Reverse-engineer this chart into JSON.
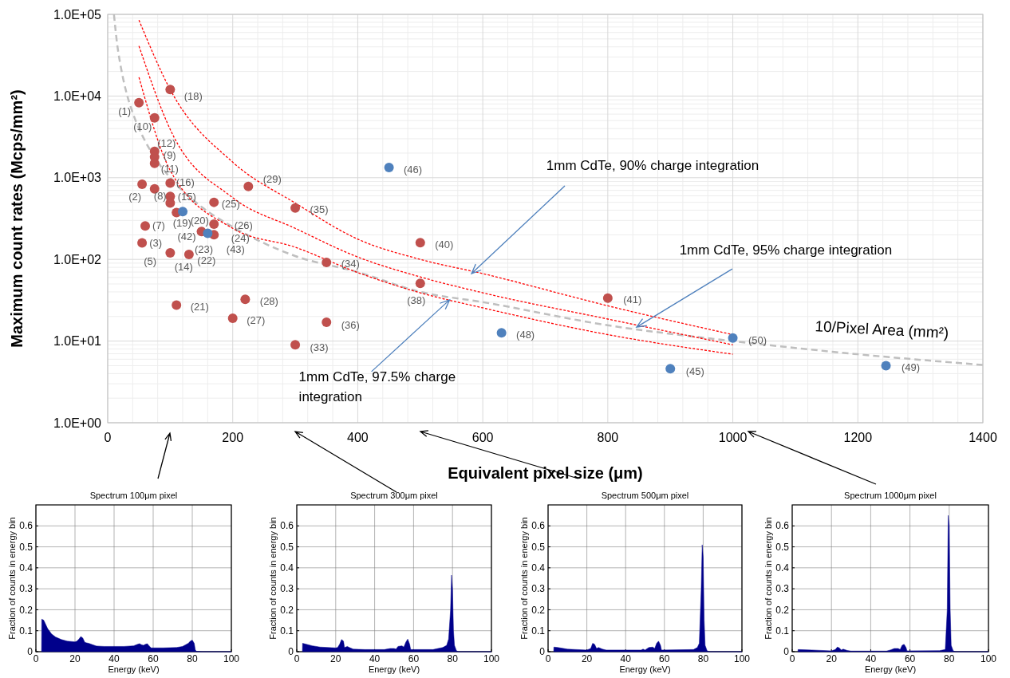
{
  "chart_data": [
    {
      "type": "scatter",
      "xlabel": "Equivalent pixel size (μm)",
      "ylabel": "Maximum count rates (Mcps/mm²)",
      "xlim": [
        0,
        1400
      ],
      "xticks": [
        0,
        200,
        400,
        600,
        800,
        1000,
        1200,
        1400
      ],
      "ylim": [
        1,
        100000
      ],
      "yticks": [
        {
          "value": 1,
          "label": "1.0E+00"
        },
        {
          "value": 10,
          "label": "1.0E+01"
        },
        {
          "value": 100,
          "label": "1.0E+02"
        },
        {
          "value": 1000,
          "label": "1.0E+03"
        },
        {
          "value": 10000,
          "label": "1.0E+04"
        },
        {
          "value": 100000,
          "label": "1.0E+05"
        }
      ],
      "log": "y",
      "grid": true,
      "series": [
        {
          "type": "line",
          "name": "10/Pixel Area (mm²)",
          "color": "#bfbfbf",
          "line_style": "dashed",
          "x": [
            10,
            15,
            20,
            30,
            40,
            50,
            60,
            80,
            100,
            150,
            200,
            300,
            400,
            500,
            600,
            800,
            1000,
            1200,
            1400
          ],
          "values": [
            100000,
            44000,
            25000,
            11000,
            6250,
            4000,
            2800,
            1560,
            1000,
            440,
            250,
            110,
            70,
            40,
            30,
            15.6,
            10,
            6.9,
            5.1
          ]
        },
        {
          "type": "line",
          "color": "#ff0000",
          "line_style": "dotted",
          "x": [
            50,
            100,
            200,
            300,
            400,
            500,
            600,
            800,
            1000
          ],
          "values": [
            85000,
            12000,
            1550,
            490,
            177,
            100,
            67,
            27,
            12
          ]
        },
        {
          "type": "line",
          "color": "#ff0000",
          "line_style": "dotted",
          "x": [
            50,
            100,
            200,
            300,
            400,
            500,
            600,
            800,
            1000
          ],
          "values": [
            41000,
            3900,
            570,
            240,
            107,
            61,
            39,
            18.6,
            9
          ]
        },
        {
          "type": "line",
          "color": "#ff0000",
          "line_style": "dotted",
          "x": [
            50,
            100,
            200,
            300,
            400,
            500,
            600,
            800,
            1000
          ],
          "values": [
            17000,
            1230,
            240,
            141,
            69,
            39,
            25.5,
            12,
            6.9
          ]
        },
        {
          "type": "scatter",
          "color": "#c0504d",
          "marker": "circle",
          "x": [
            50,
            75,
            100,
            75,
            75,
            75,
            55,
            75,
            100,
            100,
            100,
            110,
            170,
            225,
            300,
            60,
            55,
            170,
            170,
            150,
            100,
            130,
            110,
            220,
            200,
            300,
            350,
            350,
            500,
            500,
            800
          ],
          "values": [
            8300,
            5400,
            12000,
            2100,
            1800,
            1500,
            830,
            730,
            860,
            590,
            490,
            375,
            500,
            780,
            425,
            257,
            159,
            270,
            200,
            219,
            120,
            115,
            27.5,
            32.5,
            19,
            9,
            17,
            92,
            160,
            51,
            33.5
          ]
        },
        {
          "type": "scatter",
          "color": "#4f81bd",
          "marker": "circle",
          "x": [
            120,
            160,
            450,
            630,
            900,
            1000,
            1245
          ],
          "values": [
            385,
            209,
            1330,
            12.6,
            4.6,
            10.9,
            5
          ]
        }
      ],
      "annotations": [
        {
          "text": "(1)",
          "x": 50,
          "y": 8300
        },
        {
          "text": "(10)",
          "x": 75,
          "y": 5400
        },
        {
          "text": "(18)",
          "x": 100,
          "y": 12000
        },
        {
          "text": "(12)",
          "x": 75,
          "y": 2100
        },
        {
          "text": "(9)",
          "x": 75,
          "y": 1800
        },
        {
          "text": "(11)",
          "x": 75,
          "y": 1500
        },
        {
          "text": "(2)",
          "x": 55,
          "y": 830
        },
        {
          "text": "(8)",
          "x": 75,
          "y": 730
        },
        {
          "text": "(16)",
          "x": 100,
          "y": 860
        },
        {
          "text": "(15)",
          "x": 100,
          "y": 590
        },
        {
          "text": "(19)",
          "x": 110,
          "y": 375
        },
        {
          "text": "(20)",
          "x": 100,
          "y": 490
        },
        {
          "text": "(42)",
          "x": 120,
          "y": 385
        },
        {
          "text": "(43)",
          "x": 160,
          "y": 209
        },
        {
          "text": "(23)",
          "x": 150,
          "y": 219
        },
        {
          "text": "(25)",
          "x": 170,
          "y": 500
        },
        {
          "text": "(29)",
          "x": 225,
          "y": 780
        },
        {
          "text": "(35)",
          "x": 300,
          "y": 425
        },
        {
          "text": "(7)",
          "x": 60,
          "y": 257
        },
        {
          "text": "(3)",
          "x": 55,
          "y": 159
        },
        {
          "text": "(5)",
          "x": 55,
          "y": 159
        },
        {
          "text": "(26)",
          "x": 170,
          "y": 270
        },
        {
          "text": "(24)",
          "x": 170,
          "y": 200
        },
        {
          "text": "(14)",
          "x": 100,
          "y": 120
        },
        {
          "text": "(22)",
          "x": 130,
          "y": 115
        },
        {
          "text": "(21)",
          "x": 110,
          "y": 27.5
        },
        {
          "text": "(28)",
          "x": 220,
          "y": 32.5
        },
        {
          "text": "(27)",
          "x": 200,
          "y": 19
        },
        {
          "text": "(33)",
          "x": 300,
          "y": 9
        },
        {
          "text": "(36)",
          "x": 350,
          "y": 17
        },
        {
          "text": "(34)",
          "x": 350,
          "y": 92
        },
        {
          "text": "(40)",
          "x": 500,
          "y": 160
        },
        {
          "text": "(38)",
          "x": 500,
          "y": 51
        },
        {
          "text": "(41)",
          "x": 800,
          "y": 33.5
        },
        {
          "text": "(46)",
          "x": 450,
          "y": 1330
        },
        {
          "text": "(48)",
          "x": 630,
          "y": 12.6
        },
        {
          "text": "(45)",
          "x": 900,
          "y": 4.6
        },
        {
          "text": "(50)",
          "x": 1000,
          "y": 10.9
        },
        {
          "text": "(49)",
          "x": 1245,
          "y": 5
        },
        {
          "text": "1mm CdTe, 90% charge integration",
          "x": 582,
          "y": 67
        },
        {
          "text": "1mm CdTe, 95% charge integration",
          "x": 846,
          "y": 14.8
        },
        {
          "text": "1mm CdTe, 97.5% charge integration",
          "x": 547,
          "y": 32
        }
      ]
    },
    {
      "type": "area",
      "title": "Spectrum 100μm pixel",
      "xlabel": "Energy (keV)",
      "ylabel": "Fraction of counts in energy bin",
      "xlim": [
        0,
        100
      ],
      "xticks": [
        0,
        20,
        40,
        60,
        80,
        100
      ],
      "ylim": [
        0,
        0.7
      ],
      "yticks": [
        0,
        0.1,
        0.2,
        0.3,
        0.4,
        0.5,
        0.6
      ],
      "grid": true,
      "series": [
        {
          "color": "#00008b",
          "x": [
            2.9,
            3,
            4,
            6,
            8,
            10,
            13,
            16,
            20,
            21,
            22,
            23,
            24,
            25,
            26,
            27,
            29,
            31,
            35,
            40,
            45,
            50,
            52,
            53,
            54,
            55,
            56,
            57,
            58,
            59,
            65,
            72,
            75,
            78,
            79,
            80,
            81,
            81.5,
            82,
            85,
            100
          ],
          "values": [
            0,
            0.155,
            0.15,
            0.11,
            0.085,
            0.07,
            0.058,
            0.05,
            0.047,
            0.05,
            0.06,
            0.072,
            0.065,
            0.045,
            0.042,
            0.04,
            0.033,
            0.027,
            0.025,
            0.025,
            0.025,
            0.028,
            0.035,
            0.038,
            0.033,
            0.03,
            0.035,
            0.038,
            0.027,
            0.018,
            0.018,
            0.02,
            0.025,
            0.04,
            0.05,
            0.055,
            0.04,
            0.01,
            0.002,
            0,
            0
          ]
        }
      ]
    },
    {
      "type": "area",
      "title": "Spectrum 300μm pixel",
      "xlabel": "Energy (keV)",
      "ylabel": "Fraction of counts in energy bin",
      "xlim": [
        0,
        100
      ],
      "xticks": [
        0,
        20,
        40,
        60,
        80,
        100
      ],
      "ylim": [
        0,
        0.7
      ],
      "yticks": [
        0,
        0.1,
        0.2,
        0.3,
        0.4,
        0.5,
        0.6
      ],
      "grid": true,
      "series": [
        {
          "color": "#00008b",
          "x": [
            2.9,
            3,
            5,
            8,
            12,
            20,
            21,
            22,
            23,
            24,
            24.5,
            26,
            27,
            29,
            35,
            45,
            48,
            50,
            51,
            52,
            54,
            55,
            56,
            57,
            58,
            58.5,
            70,
            75,
            77,
            78,
            79,
            79.5,
            80,
            80.5,
            81,
            82,
            83,
            100
          ],
          "values": [
            0,
            0.04,
            0.035,
            0.028,
            0.022,
            0.018,
            0.02,
            0.035,
            0.058,
            0.05,
            0.02,
            0.025,
            0.02,
            0.012,
            0.01,
            0.01,
            0.015,
            0.015,
            0.012,
            0.025,
            0.028,
            0.022,
            0.045,
            0.06,
            0.035,
            0.01,
            0.01,
            0.02,
            0.03,
            0.06,
            0.2,
            0.365,
            0.3,
            0.1,
            0.03,
            0.005,
            0,
            0
          ]
        }
      ]
    },
    {
      "type": "area",
      "title": "Spectrum 500μm pixel",
      "xlabel": "Energy (keV)",
      "ylabel": "Fraction of counts in energy bin",
      "xlim": [
        0,
        100
      ],
      "xticks": [
        0,
        20,
        40,
        60,
        80,
        100
      ],
      "ylim": [
        0,
        0.7
      ],
      "yticks": [
        0,
        0.1,
        0.2,
        0.3,
        0.4,
        0.5,
        0.6
      ],
      "grid": true,
      "series": [
        {
          "color": "#00008b",
          "x": [
            2.9,
            3,
            5,
            10,
            20,
            22,
            23,
            24,
            25,
            26,
            28,
            30,
            48,
            49,
            50,
            52,
            54,
            55,
            56,
            57,
            58,
            58.5,
            75,
            77,
            78,
            79,
            79.5,
            80,
            80.5,
            81,
            82,
            83,
            100
          ],
          "values": [
            0,
            0.022,
            0.02,
            0.012,
            0.008,
            0.015,
            0.04,
            0.035,
            0.015,
            0.02,
            0.012,
            0.008,
            0.008,
            0.012,
            0.008,
            0.02,
            0.022,
            0.015,
            0.04,
            0.05,
            0.03,
            0.008,
            0.01,
            0.02,
            0.04,
            0.3,
            0.51,
            0.45,
            0.15,
            0.03,
            0.005,
            0,
            0
          ]
        }
      ]
    },
    {
      "type": "area",
      "title": "Spectrum 1000μm pixel",
      "xlabel": "Energy (keV)",
      "ylabel": "Fraction of counts in energy bin",
      "xlim": [
        0,
        100
      ],
      "xticks": [
        0,
        20,
        40,
        60,
        80,
        100
      ],
      "ylim": [
        0,
        0.7
      ],
      "yticks": [
        0,
        0.1,
        0.2,
        0.3,
        0.4,
        0.5,
        0.6
      ],
      "grid": true,
      "series": [
        {
          "color": "#00008b",
          "x": [
            2.9,
            3,
            10,
            20,
            22,
            23,
            24,
            25,
            26,
            28,
            30,
            48,
            50,
            52,
            54,
            55,
            56,
            57,
            58,
            58.5,
            75,
            78,
            79,
            79.5,
            80,
            80.5,
            81,
            82,
            83,
            100
          ],
          "values": [
            0,
            0.01,
            0.008,
            0.004,
            0.01,
            0.022,
            0.018,
            0.008,
            0.012,
            0.006,
            0.003,
            0.003,
            0.008,
            0.015,
            0.015,
            0.01,
            0.03,
            0.035,
            0.02,
            0.004,
            0.005,
            0.01,
            0.2,
            0.65,
            0.6,
            0.2,
            0.03,
            0.005,
            0,
            0
          ]
        }
      ]
    }
  ]
}
